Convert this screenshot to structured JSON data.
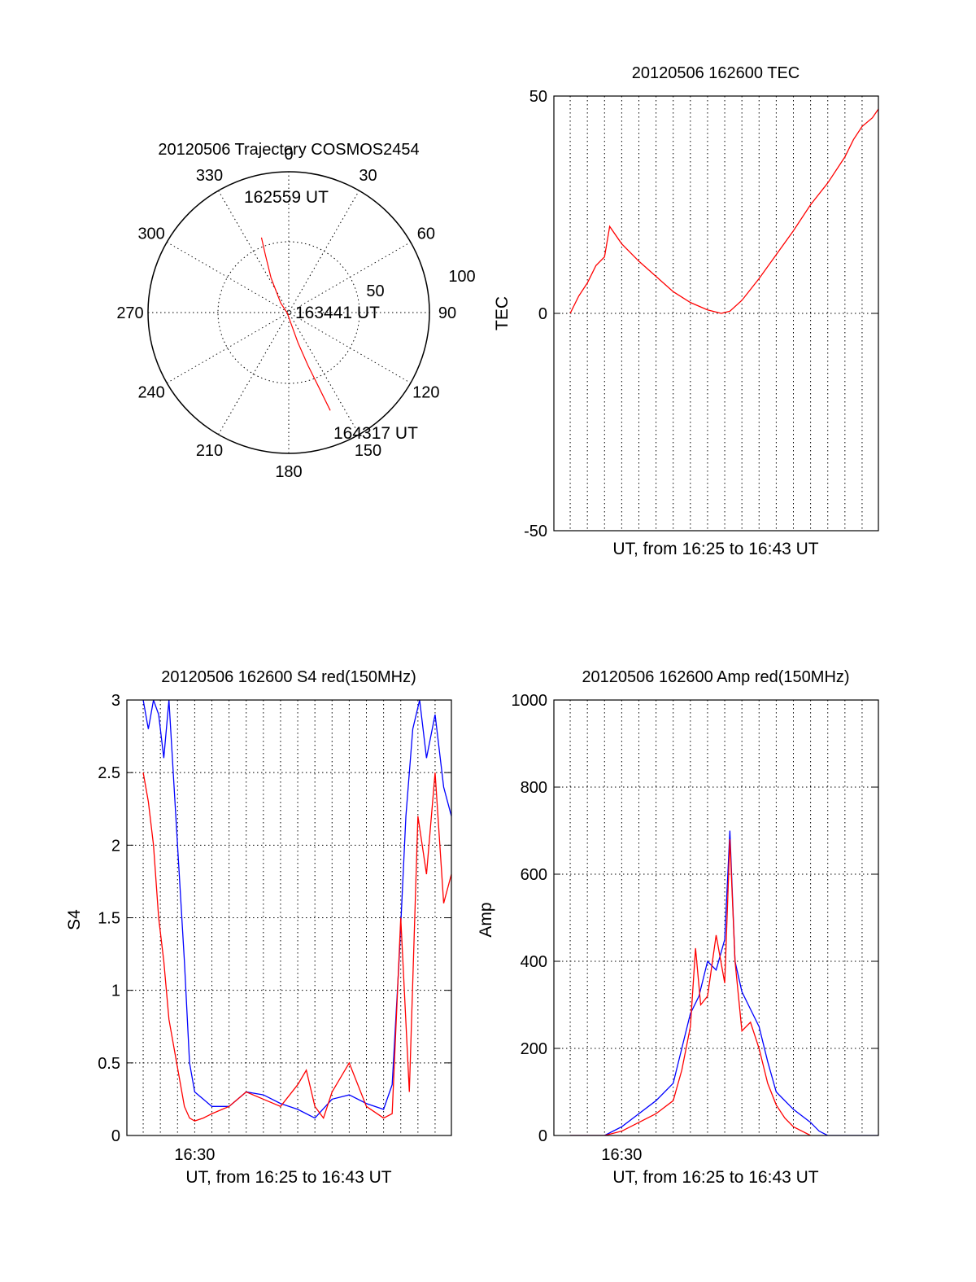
{
  "chart_data": [
    {
      "id": "trajectory",
      "type": "polar",
      "title": "20120506 Trajectory COSMOS2454",
      "angle_labels": [
        "0",
        "30",
        "60",
        "90",
        "120",
        "150",
        "180",
        "210",
        "240",
        "270",
        "300",
        "330"
      ],
      "radial_labels": [
        "50",
        "100"
      ],
      "rmax": 100,
      "series": [
        {
          "color": "#ff0000",
          "points": [
            {
              "az": 340,
              "el": 39
            },
            {
              "az": 338,
              "el": 50
            },
            {
              "az": 333,
              "el": 65
            },
            {
              "az": 320,
              "el": 82
            },
            {
              "az": 250,
              "el": 89
            },
            {
              "az": 170,
              "el": 84
            },
            {
              "az": 163,
              "el": 70
            },
            {
              "az": 160,
              "el": 54
            },
            {
              "az": 158,
              "el": 38
            },
            {
              "az": 157,
              "el": 22
            }
          ]
        }
      ],
      "annotations": [
        {
          "text": "162559 UT",
          "az": 343,
          "el": 37
        },
        {
          "text": "163441 UT",
          "az": 88,
          "el": 90
        },
        {
          "text": "164317 UT",
          "az": 155,
          "el": 18
        }
      ]
    },
    {
      "id": "tec",
      "type": "line",
      "title": "20120506 162600 TEC",
      "xlabel": "UT, from 16:25 to 16:43 UT",
      "ylabel": "TEC",
      "xlim": [
        -0.95,
        17.95
      ],
      "ylim": [
        -50,
        50
      ],
      "yticks": [
        "50",
        "0",
        "-50"
      ],
      "ytick_values": [
        50,
        0,
        -50
      ],
      "grid": true,
      "series": [
        {
          "color": "#ff0000",
          "x": [
            0,
            0.5,
            1,
            1.5,
            2,
            2.3,
            3,
            4,
            5,
            6,
            7,
            8,
            8.8,
            9.3,
            10,
            11,
            12,
            13,
            14,
            15,
            16,
            16.5,
            17,
            17.6,
            17.95
          ],
          "y": [
            0,
            4,
            7,
            11,
            13,
            20,
            16,
            12,
            8.5,
            5,
            2.5,
            0.8,
            0,
            0.5,
            3,
            8,
            13.5,
            19,
            25,
            30,
            36,
            40,
            43,
            45,
            47
          ]
        }
      ]
    },
    {
      "id": "s4",
      "type": "line",
      "title": "20120506 162600 S4 red(150MHz)",
      "xlabel": "UT, from 16:25 to 16:43 UT",
      "ylabel": "S4",
      "xtick_label": "16:30",
      "xtick_value": 3,
      "xlim": [
        -0.95,
        17.95
      ],
      "ylim": [
        0,
        3
      ],
      "yticks": [
        "0",
        "0.5",
        "1",
        "1.5",
        "2",
        "2.5",
        "3"
      ],
      "ytick_values": [
        0,
        0.5,
        1,
        1.5,
        2,
        2.5,
        3
      ],
      "grid": true,
      "series": [
        {
          "color": "#0000ff",
          "x": [
            0,
            0.3,
            0.6,
            0.9,
            1.2,
            1.5,
            1.8,
            2.1,
            2.4,
            2.7,
            3.0,
            3.5,
            4,
            5,
            6,
            7,
            8,
            9,
            10,
            11,
            12,
            13,
            14,
            14.5,
            14.9,
            15.3,
            15.7,
            16.1,
            16.5,
            17,
            17.5,
            17.95
          ],
          "y": [
            3,
            2.8,
            3,
            2.9,
            2.6,
            3,
            2.4,
            1.8,
            1.2,
            0.5,
            0.3,
            0.25,
            0.2,
            0.2,
            0.3,
            0.28,
            0.22,
            0.18,
            0.12,
            0.25,
            0.28,
            0.22,
            0.18,
            0.35,
            1.2,
            2.2,
            2.8,
            3,
            2.6,
            2.9,
            2.4,
            2.2
          ]
        },
        {
          "color": "#ff0000",
          "x": [
            0,
            0.3,
            0.6,
            0.9,
            1.2,
            1.5,
            1.8,
            2.1,
            2.4,
            2.7,
            3.0,
            3.5,
            4,
            5,
            6,
            7,
            8,
            9,
            9.5,
            10,
            10.5,
            11,
            11.5,
            12,
            13,
            14,
            14.5,
            15,
            15.5,
            16,
            16.5,
            17,
            17.5,
            17.95
          ],
          "y": [
            2.5,
            2.3,
            2.0,
            1.5,
            1.2,
            0.8,
            0.6,
            0.4,
            0.2,
            0.12,
            0.1,
            0.12,
            0.15,
            0.2,
            0.3,
            0.25,
            0.2,
            0.35,
            0.45,
            0.2,
            0.12,
            0.3,
            0.4,
            0.5,
            0.2,
            0.12,
            0.15,
            1.5,
            0.3,
            2.2,
            1.8,
            2.5,
            1.6,
            1.8
          ]
        }
      ]
    },
    {
      "id": "amp",
      "type": "line",
      "title": "20120506 162600 Amp red(150MHz)",
      "xlabel": "UT, from 16:25 to 16:43 UT",
      "ylabel": "Amp",
      "xtick_label": "16:30",
      "xtick_value": 3,
      "xlim": [
        -0.95,
        17.95
      ],
      "ylim": [
        0,
        1000
      ],
      "yticks": [
        "0",
        "200",
        "400",
        "600",
        "800",
        "1000"
      ],
      "ytick_values": [
        0,
        200,
        400,
        600,
        800,
        1000
      ],
      "grid": true,
      "series": [
        {
          "color": "#0000ff",
          "x": [
            0,
            2,
            3,
            4,
            5,
            6,
            6.5,
            7,
            7.5,
            8,
            8.5,
            9,
            9.3,
            9.6,
            10,
            10.5,
            11,
            11.5,
            12,
            13,
            14,
            14.5,
            15,
            16,
            17,
            17.95
          ],
          "y": [
            0,
            0,
            20,
            50,
            80,
            120,
            200,
            280,
            320,
            400,
            380,
            450,
            700,
            400,
            330,
            290,
            250,
            170,
            100,
            60,
            30,
            10,
            0,
            0,
            0,
            0
          ]
        },
        {
          "color": "#ff0000",
          "x": [
            0,
            2,
            3,
            4,
            5,
            6,
            6.5,
            7,
            7.3,
            7.6,
            8,
            8.5,
            9,
            9.3,
            9.6,
            10,
            10.5,
            11,
            11.5,
            12,
            12.5,
            13,
            14
          ],
          "y": [
            0,
            0,
            10,
            30,
            50,
            80,
            150,
            250,
            430,
            300,
            320,
            460,
            350,
            680,
            400,
            240,
            260,
            200,
            120,
            70,
            40,
            20,
            0
          ]
        }
      ]
    }
  ]
}
